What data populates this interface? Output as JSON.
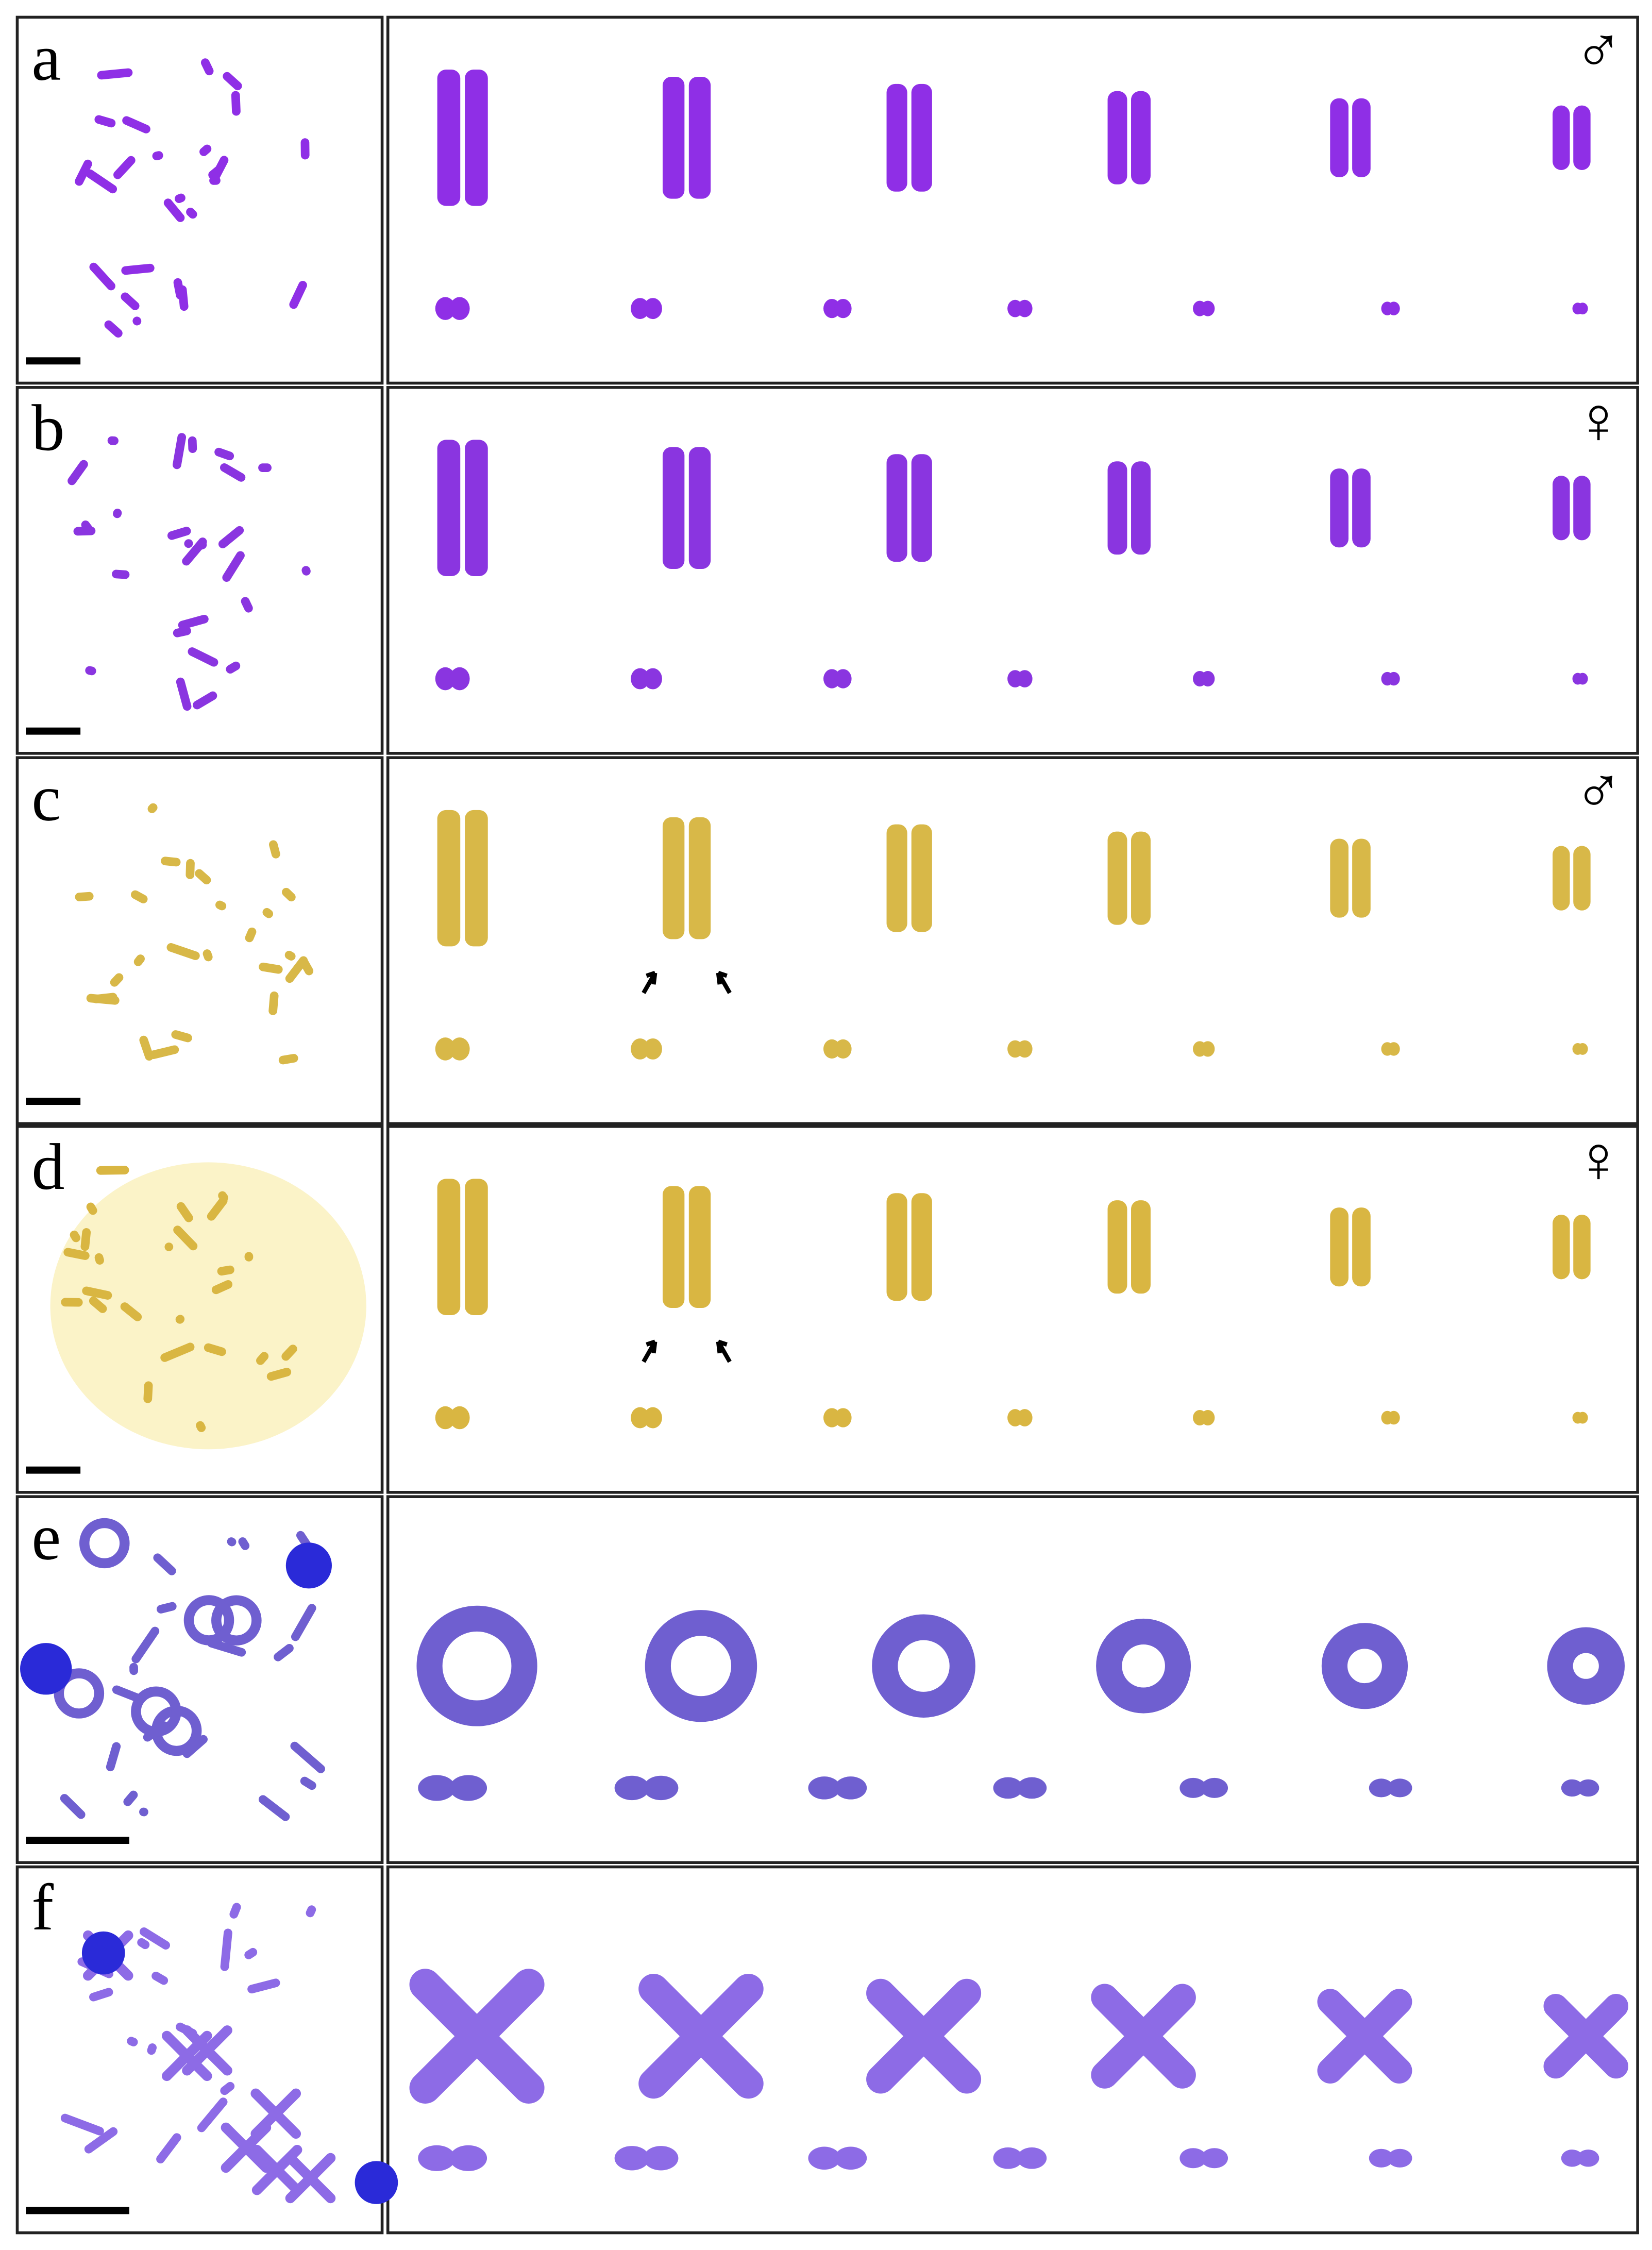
{
  "panels": [
    {
      "label": "a",
      "sex": "♂"
    },
    {
      "label": "b",
      "sex": "♀"
    },
    {
      "label": "c",
      "sex": "♂"
    },
    {
      "label": "d",
      "sex": "♀"
    },
    {
      "label": "e"
    },
    {
      "label": "f"
    }
  ]
}
